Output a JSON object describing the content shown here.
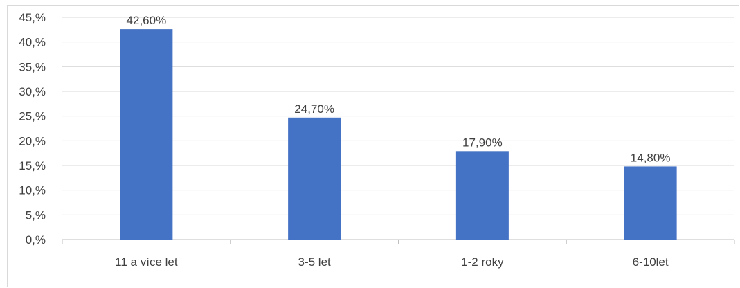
{
  "chart_data": {
    "type": "bar",
    "categories": [
      "11 a více let",
      "3-5 let",
      "1-2 roky",
      "6-10let"
    ],
    "values": [
      42.6,
      24.7,
      17.9,
      14.8
    ],
    "data_labels": [
      "42,60%",
      "24,70%",
      "17,90%",
      "14,80%"
    ],
    "y_ticks": [
      "0,%",
      "5,%",
      "10,%",
      "15,%",
      "20,%",
      "25,%",
      "30,%",
      "35,%",
      "40,%",
      "45,%"
    ],
    "ylim": [
      0,
      45
    ],
    "grid": true,
    "title": "",
    "xlabel": "",
    "ylabel": "",
    "colors": {
      "bar": "#4472c4",
      "grid": "#d9d9d9",
      "axis": "#bfbfbf",
      "text": "#404040"
    }
  }
}
